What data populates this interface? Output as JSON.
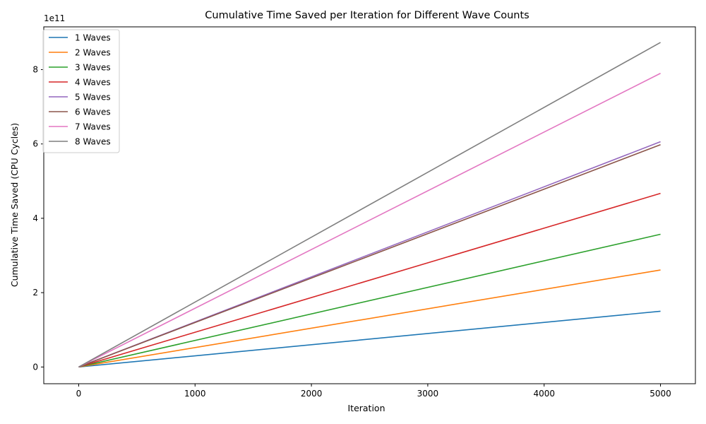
{
  "chart_data": {
    "type": "line",
    "title": "Cumulative Time Saved per Iteration for Different Wave Counts",
    "xlabel": "Iteration",
    "ylabel": "Cumulative Time Saved (CPU Cycles)",
    "y_offset_label": "1e11",
    "xlim": [
      -300,
      5300
    ],
    "ylim": [
      -45000000000.0,
      915000000000.0
    ],
    "x_ticks": [
      0,
      1000,
      2000,
      3000,
      4000,
      5000
    ],
    "y_ticks": [
      0,
      200000000000.0,
      400000000000.0,
      600000000000.0,
      800000000000.0
    ],
    "y_tick_labels": [
      "0",
      "2",
      "4",
      "6",
      "8"
    ],
    "grid": false,
    "legend_position": "top-left",
    "series": [
      {
        "name": "1 Waves",
        "color": "#1f77b4",
        "x": [
          0,
          5000
        ],
        "y": [
          0,
          150000000000.0
        ]
      },
      {
        "name": "2 Waves",
        "color": "#ff7f0e",
        "x": [
          0,
          5000
        ],
        "y": [
          0,
          261000000000.0
        ]
      },
      {
        "name": "3 Waves",
        "color": "#2ca02c",
        "x": [
          0,
          5000
        ],
        "y": [
          0,
          357000000000.0
        ]
      },
      {
        "name": "4 Waves",
        "color": "#d62728",
        "x": [
          0,
          5000
        ],
        "y": [
          0,
          467000000000.0
        ]
      },
      {
        "name": "5 Waves",
        "color": "#9467bd",
        "x": [
          0,
          5000
        ],
        "y": [
          0,
          606000000000.0
        ]
      },
      {
        "name": "6 Waves",
        "color": "#8c564b",
        "x": [
          0,
          5000
        ],
        "y": [
          0,
          598000000000.0
        ]
      },
      {
        "name": "7 Waves",
        "color": "#e377c2",
        "x": [
          0,
          5000
        ],
        "y": [
          0,
          790000000000.0
        ]
      },
      {
        "name": "8 Waves",
        "color": "#7f7f7f",
        "x": [
          0,
          5000
        ],
        "y": [
          0,
          873000000000.0
        ]
      }
    ]
  }
}
